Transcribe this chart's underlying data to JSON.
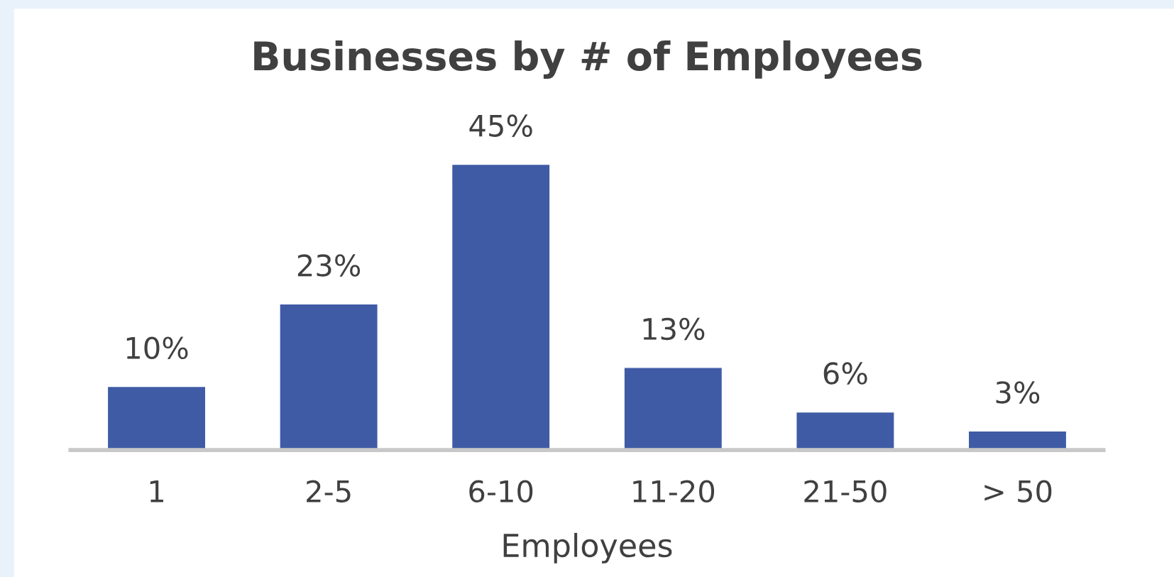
{
  "chart_data": {
    "type": "bar",
    "title": "Businesses by # of Employees",
    "xlabel": "Employees",
    "categories": [
      "1",
      "2-5",
      "6-10",
      "11-20",
      "21-50",
      "> 50"
    ],
    "values": [
      10,
      23,
      45,
      13,
      6,
      3
    ],
    "value_labels": [
      "10%",
      "23%",
      "45%",
      "13%",
      "6%",
      "3%"
    ],
    "color": "#3f5ba5",
    "grid": false,
    "legend": false
  }
}
